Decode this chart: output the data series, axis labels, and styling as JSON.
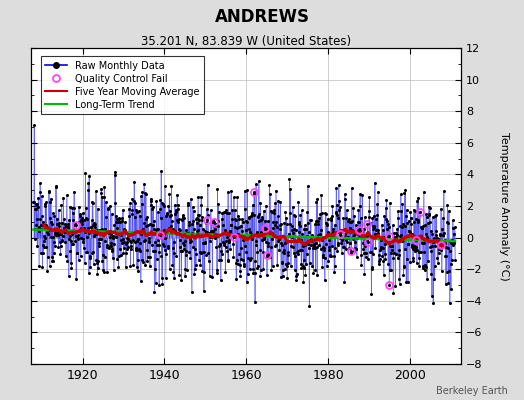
{
  "title": "ANDREWS",
  "subtitle": "35.201 N, 83.839 W (United States)",
  "ylabel": "Temperature Anomaly (°C)",
  "attribution": "Berkeley Earth",
  "start_year": 1908,
  "end_year": 2011,
  "ylim": [
    -8,
    12
  ],
  "yticks": [
    -8,
    -6,
    -4,
    -2,
    0,
    2,
    4,
    6,
    8,
    10,
    12
  ],
  "xticks": [
    1920,
    1940,
    1960,
    1980,
    2000
  ],
  "raw_color": "#0000EE",
  "raw_stem_color": "#6666FF",
  "ma_color": "#CC0000",
  "trend_color": "#00BB00",
  "qc_color": "#FF44FF",
  "bg_color": "#DDDDDD",
  "plot_bg": "#FFFFFF",
  "seed": 137
}
